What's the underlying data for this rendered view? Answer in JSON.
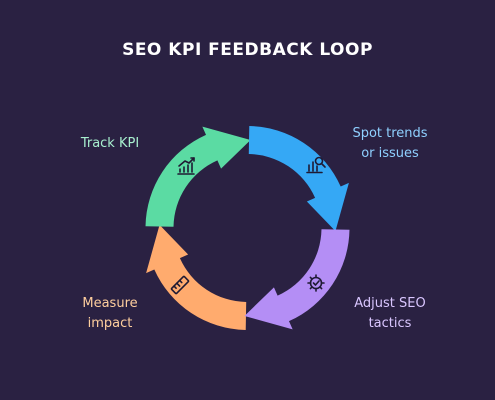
{
  "title": "SEO KPI FEEDBACK LOOP",
  "stages": [
    {
      "lines": [
        "Track KPI"
      ],
      "color": "#5bdba3",
      "text_color": "#a8f0cf",
      "icon": "chart-trend-icon"
    },
    {
      "lines": [
        "Spot trends",
        "or issues"
      ],
      "color": "#35a8f5",
      "text_color": "#8fd0ff",
      "icon": "chart-search-icon"
    },
    {
      "lines": [
        "Adjust SEO",
        "tactics"
      ],
      "color": "#b48ef5",
      "text_color": "#d9c6ff",
      "icon": "gear-check-icon"
    },
    {
      "lines": [
        "Measure",
        "impact"
      ],
      "color": "#ffab6e",
      "text_color": "#ffcf9e",
      "icon": "ruler-icon"
    }
  ]
}
